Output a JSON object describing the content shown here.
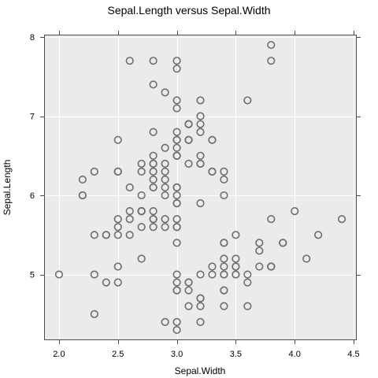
{
  "chart_data": {
    "type": "scatter",
    "title": "Sepal.Length versus Sepal.Width",
    "xlabel": "Sepal.Width",
    "ylabel": "Sepal.Length",
    "xlim": [
      1.88,
      4.52
    ],
    "ylim": [
      4.18,
      8.02
    ],
    "x_ticks": [
      2.0,
      2.5,
      3.0,
      3.5,
      4.0,
      4.5
    ],
    "x_tick_labels": [
      "2.0",
      "2.5",
      "3.0",
      "3.5",
      "4.0",
      "4.5"
    ],
    "y_ticks": [
      5,
      6,
      7,
      8
    ],
    "y_tick_labels": [
      "5",
      "6",
      "7",
      "8"
    ],
    "grid": true,
    "point_color": "#6e6e6e",
    "panel_color": "#ebebeb",
    "series": [
      {
        "x": [
          3.5,
          3.0,
          3.2,
          3.1,
          3.6,
          3.9,
          3.4,
          3.4,
          2.9,
          3.1,
          3.7,
          3.4,
          3.0,
          3.0,
          4.0,
          4.4,
          3.9,
          3.5,
          3.8,
          3.8,
          3.4,
          3.7,
          3.6,
          3.3,
          3.4,
          3.0,
          3.4,
          3.5,
          3.4,
          3.2,
          3.1,
          3.4,
          4.1,
          4.2,
          3.1,
          3.2,
          3.5,
          3.6,
          3.0,
          3.4,
          3.5,
          2.3,
          3.2,
          3.5,
          3.8,
          3.0,
          3.8,
          3.2,
          3.7,
          3.3,
          3.2,
          3.2,
          3.1,
          2.3,
          2.8,
          2.8,
          3.3,
          2.4,
          2.9,
          2.7,
          2.0,
          3.0,
          2.2,
          2.9,
          2.9,
          3.1,
          3.0,
          2.7,
          2.2,
          2.5,
          3.2,
          2.8,
          2.5,
          2.8,
          2.9,
          3.0,
          2.8,
          3.0,
          2.9,
          2.6,
          2.4,
          2.4,
          2.7,
          2.7,
          3.0,
          3.4,
          3.1,
          2.3,
          3.0,
          2.5,
          2.6,
          3.0,
          2.6,
          2.3,
          2.7,
          3.0,
          2.9,
          2.9,
          2.5,
          2.8,
          3.3,
          2.7,
          3.0,
          2.9,
          3.0,
          3.0,
          2.5,
          2.9,
          2.5,
          3.6,
          3.2,
          2.7,
          3.0,
          2.5,
          2.8,
          3.2,
          3.0,
          3.8,
          2.6,
          2.2,
          3.2,
          2.8,
          2.8,
          2.7,
          3.3,
          3.2,
          2.8,
          3.0,
          2.8,
          3.0,
          2.8,
          3.8,
          2.8,
          2.8,
          2.6,
          3.0,
          3.4,
          3.1,
          3.0,
          3.1,
          3.1,
          3.1,
          2.7,
          3.2,
          3.3,
          3.0,
          2.5,
          3.0,
          3.4,
          3.0
        ],
        "y": [
          5.1,
          4.9,
          4.7,
          4.6,
          5.0,
          5.4,
          4.6,
          5.0,
          4.4,
          4.9,
          5.4,
          4.8,
          4.8,
          4.3,
          5.8,
          5.7,
          5.4,
          5.1,
          5.7,
          5.1,
          5.4,
          5.1,
          4.6,
          5.1,
          4.8,
          5.0,
          5.0,
          5.2,
          5.2,
          4.7,
          4.8,
          5.4,
          5.2,
          5.5,
          4.9,
          5.0,
          5.5,
          4.9,
          4.4,
          5.1,
          5.0,
          4.5,
          4.4,
          5.0,
          5.1,
          4.8,
          5.1,
          4.6,
          5.3,
          5.0,
          7.0,
          6.4,
          6.9,
          5.5,
          6.5,
          5.7,
          6.3,
          4.9,
          6.6,
          5.2,
          5.0,
          5.9,
          6.0,
          6.1,
          5.6,
          6.7,
          5.6,
          5.8,
          6.2,
          5.6,
          5.9,
          6.1,
          6.3,
          6.1,
          6.4,
          6.6,
          6.8,
          6.7,
          6.0,
          5.7,
          5.5,
          5.5,
          5.8,
          6.0,
          5.4,
          6.0,
          6.7,
          6.3,
          5.6,
          5.5,
          5.5,
          6.1,
          5.8,
          5.0,
          5.6,
          5.7,
          5.7,
          6.2,
          5.1,
          5.7,
          6.3,
          5.8,
          7.1,
          6.3,
          6.5,
          7.6,
          4.9,
          7.3,
          6.7,
          7.2,
          6.5,
          6.4,
          6.8,
          5.7,
          5.8,
          6.4,
          6.5,
          7.7,
          7.7,
          6.0,
          6.9,
          5.6,
          7.7,
          6.3,
          6.7,
          7.2,
          6.2,
          6.1,
          6.4,
          7.2,
          7.4,
          7.9,
          6.4,
          6.3,
          6.1,
          7.7,
          6.3,
          6.4,
          6.0,
          6.9,
          6.7,
          6.9,
          5.8,
          6.8,
          6.7,
          6.7,
          6.3,
          6.5,
          6.2,
          5.9
        ]
      }
    ]
  }
}
